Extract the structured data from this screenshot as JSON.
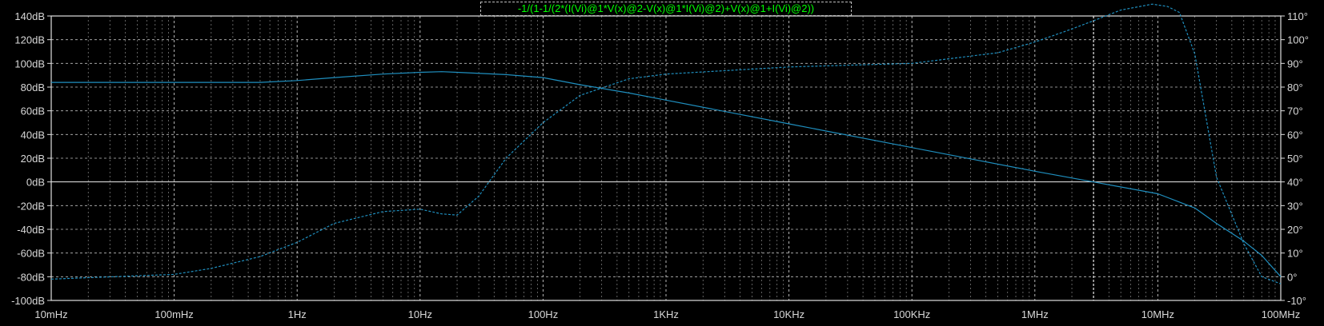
{
  "chart_data": {
    "type": "line",
    "title": "-1/(1-1/(2*(I(Vi)@1*V(x)@2-V(x)@1*I(Vi)@2)+V(x)@1+I(Vi)@2))",
    "xlabel": "",
    "ylabel": "",
    "x_scale": "log",
    "x_unit": "Hz",
    "xlim": [
      0.01,
      100000000
    ],
    "x_tick_values": [
      0.01,
      0.1,
      1,
      10,
      100,
      1000,
      10000,
      100000,
      1000000,
      10000000,
      100000000
    ],
    "x_tick_labels": [
      "10mHz",
      "100mHz",
      "1Hz",
      "10Hz",
      "100Hz",
      "1KHz",
      "10KHz",
      "100KHz",
      "1MHz",
      "10MHz",
      "100MHz"
    ],
    "y_left_unit": "dB",
    "ylim_left": [
      -100,
      140
    ],
    "y_left_tick_labels": [
      "140dB",
      "120dB",
      "100dB",
      "80dB",
      "60dB",
      "40dB",
      "20dB",
      "0dB",
      "-20dB",
      "-40dB",
      "-60dB",
      "-80dB",
      "-100dB"
    ],
    "y_right_unit": "degrees",
    "ylim_right": [
      -10,
      110
    ],
    "y_right_tick_labels": [
      "110°",
      "100°",
      "90°",
      "80°",
      "70°",
      "60°",
      "50°",
      "40°",
      "30°",
      "20°",
      "10°",
      "0°",
      "-10°"
    ],
    "grid": true,
    "cursor_x": 3000000,
    "title_color": "#00ff00",
    "trace_color": "#1f8fbf",
    "series": [
      {
        "name": "magnitude",
        "axis": "left",
        "style": "solid",
        "x": [
          0.01,
          0.1,
          0.5,
          1,
          2,
          5,
          10,
          15,
          20,
          50,
          100,
          200,
          500,
          1000,
          10000,
          100000,
          1000000,
          3000000,
          10000000,
          20000000,
          30000000,
          50000000,
          70000000,
          100000000
        ],
        "y": [
          84,
          84,
          84,
          85.5,
          88,
          91,
          92.5,
          93,
          92.5,
          90.5,
          88,
          82,
          75,
          69,
          49,
          29,
          9,
          0,
          -10,
          -22,
          -35,
          -50,
          -62,
          -80
        ]
      },
      {
        "name": "phase",
        "axis": "right",
        "style": "dashed",
        "x": [
          0.01,
          0.1,
          0.2,
          0.5,
          1,
          2,
          5,
          10,
          15,
          20,
          30,
          50,
          100,
          200,
          500,
          1000,
          10000,
          100000,
          500000,
          1000000,
          2000000,
          3000000,
          5000000,
          9000000,
          12000000,
          15000000,
          20000000,
          30000000,
          50000000,
          70000000,
          100000000
        ],
        "y": [
          -1,
          1,
          3.5,
          8.5,
          14.5,
          22.5,
          27.5,
          28.5,
          26.5,
          26,
          34,
          50,
          65,
          76.5,
          83.5,
          85.5,
          88.5,
          90,
          94.5,
          99,
          104.5,
          108,
          112.5,
          115,
          114,
          111.5,
          94,
          42,
          14,
          0,
          -3
        ]
      }
    ]
  }
}
